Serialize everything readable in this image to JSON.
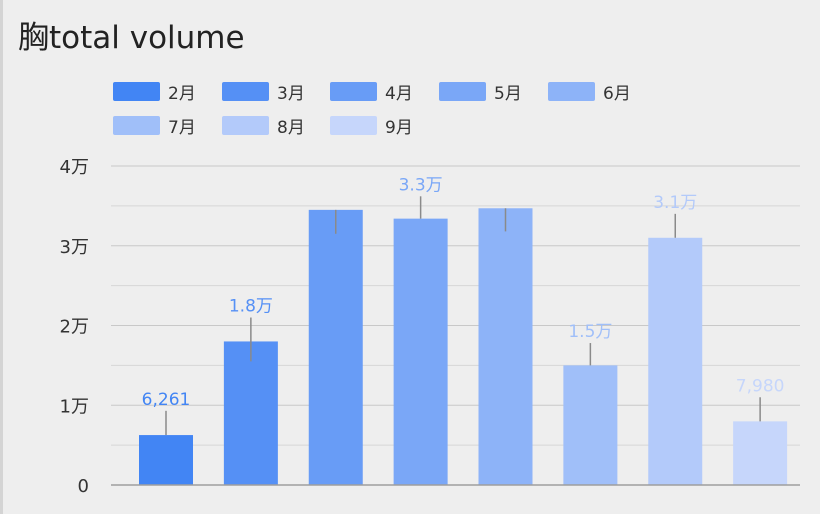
{
  "title": "胸total volume",
  "colors": [
    "#4285f4",
    "#5590f5",
    "#689cf6",
    "#7aa7f7",
    "#8db3f8",
    "#a0bff9",
    "#b3cafa",
    "#c6d6fb"
  ],
  "chart_data": {
    "type": "bar",
    "title": "胸total volume",
    "categories": [
      "2月",
      "3月",
      "4月",
      "5月",
      "6月",
      "7月",
      "8月",
      "9月"
    ],
    "values": [
      6261,
      18000,
      34500,
      33400,
      34700,
      15000,
      31000,
      7980
    ],
    "data_labels": [
      "6,261",
      "1.8万",
      "",
      "3.3万",
      "",
      "1.5万",
      "3.1万",
      "7,980"
    ],
    "error_bar_bottom": [
      6261,
      15500,
      31500,
      33400,
      31800,
      15000,
      31000,
      7980
    ],
    "error_bar_top": [
      9300,
      21000,
      34500,
      36200,
      34700,
      17800,
      34000,
      11000
    ],
    "ylim": [
      0,
      40000
    ],
    "yticks": [
      0,
      10000,
      20000,
      30000,
      40000
    ],
    "ytick_labels": [
      "0",
      "1万",
      "2万",
      "3万",
      "4万"
    ],
    "minor_gridlines": true,
    "legend_position": "top",
    "xlabel": "",
    "ylabel": ""
  }
}
